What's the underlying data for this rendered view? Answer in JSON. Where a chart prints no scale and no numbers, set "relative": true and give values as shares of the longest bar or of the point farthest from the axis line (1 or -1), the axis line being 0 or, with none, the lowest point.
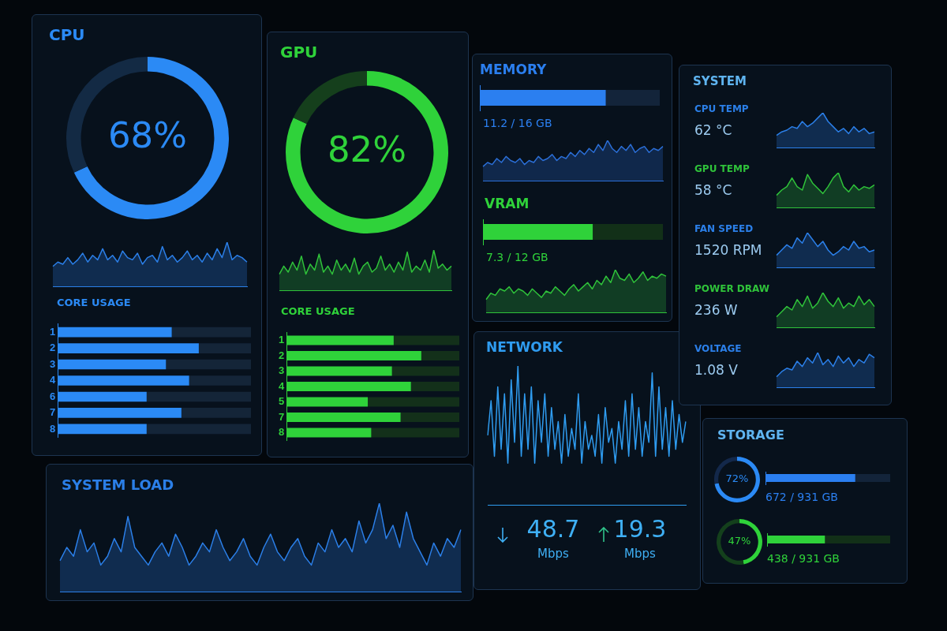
{
  "chart_data": [
    {
      "type": "donut",
      "title": "CPU",
      "categories": [
        null,
        null
      ],
      "values": [
        68,
        32
      ],
      "colors": [
        "#2b8af5",
        "#132a44"
      ],
      "value_labels": [
        "68%",
        null
      ]
    },
    {
      "type": "area",
      "relative": true,
      "color": "#2b7fe8",
      "categories": [
        null,
        null,
        null,
        null,
        null,
        null,
        null,
        null,
        null,
        null,
        null,
        null,
        null,
        null,
        null,
        null,
        null,
        null,
        null,
        null,
        null,
        null,
        null,
        null,
        null,
        null,
        null,
        null,
        null,
        null,
        null,
        null,
        null,
        null,
        null,
        null,
        null,
        null,
        null,
        null
      ],
      "values": [
        0.45,
        0.55,
        0.5,
        0.65,
        0.5,
        0.6,
        0.75,
        0.55,
        0.7,
        0.6,
        0.85,
        0.6,
        0.7,
        0.55,
        0.8,
        0.65,
        0.6,
        0.75,
        0.5,
        0.65,
        0.7,
        0.55,
        0.9,
        0.6,
        0.7,
        0.55,
        0.65,
        0.8,
        0.6,
        0.7,
        0.55,
        0.75,
        0.6,
        0.85,
        0.65,
        1,
        0.6,
        0.7,
        0.65,
        0.55
      ]
    },
    {
      "type": "bar",
      "title": "CORE USAGE",
      "orientation": "horizontal",
      "stacked": true,
      "relative": true,
      "categories": [
        "1",
        "2",
        "3",
        "4",
        "6",
        "7",
        "8"
      ],
      "series": [
        {
          "color": "#2b8af5",
          "values": [
            0.59,
            0.73,
            0.56,
            0.68,
            0.46,
            0.64,
            0.46
          ]
        },
        {
          "color": "#142538",
          "values": [
            0.41,
            0.27,
            0.44,
            0.32,
            0.54,
            0.36,
            0.54
          ]
        }
      ]
    },
    {
      "type": "donut",
      "title": "GPU",
      "categories": [
        null,
        null
      ],
      "values": [
        82,
        18
      ],
      "colors": [
        "#2fd23a",
        "#153f1c"
      ],
      "value_labels": [
        "82%",
        null
      ]
    },
    {
      "type": "area",
      "relative": true,
      "color": "#2fc23a",
      "categories": [
        null,
        null,
        null,
        null,
        null,
        null,
        null,
        null,
        null,
        null,
        null,
        null,
        null,
        null,
        null,
        null,
        null,
        null,
        null,
        null,
        null,
        null,
        null,
        null,
        null,
        null,
        null,
        null,
        null,
        null,
        null,
        null,
        null,
        null,
        null,
        null,
        null,
        null,
        null,
        null
      ],
      "values": [
        0.4,
        0.6,
        0.45,
        0.7,
        0.5,
        0.85,
        0.4,
        0.65,
        0.5,
        0.9,
        0.45,
        0.6,
        0.4,
        0.75,
        0.5,
        0.65,
        0.45,
        0.8,
        0.4,
        0.6,
        0.7,
        0.45,
        0.55,
        0.85,
        0.5,
        0.65,
        0.45,
        0.7,
        0.5,
        0.95,
        0.45,
        0.6,
        0.5,
        0.75,
        0.45,
        1,
        0.55,
        0.65,
        0.5,
        0.6
      ]
    },
    {
      "type": "bar",
      "title": "CORE USAGE",
      "orientation": "horizontal",
      "stacked": true,
      "relative": true,
      "categories": [
        "1",
        "2",
        "3",
        "4",
        "5",
        "7",
        "8"
      ],
      "series": [
        {
          "color": "#2fd23a",
          "values": [
            0.62,
            0.78,
            0.61,
            0.72,
            0.47,
            0.66,
            0.49
          ]
        },
        {
          "color": "#13301a",
          "values": [
            0.38,
            0.22,
            0.39,
            0.28,
            0.53,
            0.34,
            0.51
          ]
        }
      ]
    },
    {
      "type": "bar",
      "title": "MEMORY",
      "orientation": "horizontal",
      "stacked": true,
      "relative": true,
      "categories": [
        null
      ],
      "series": [
        {
          "color": "#2b7ff0",
          "values": [
            0.7
          ]
        },
        {
          "color": "#13243a",
          "values": [
            0.3
          ]
        }
      ],
      "annotations": [
        "11.2 / 16 GB"
      ]
    },
    {
      "type": "area",
      "relative": true,
      "color": "#2b6fd8",
      "categories": [
        null,
        null,
        null,
        null,
        null,
        null,
        null,
        null,
        null,
        null,
        null,
        null,
        null,
        null,
        null,
        null,
        null,
        null,
        null,
        null,
        null,
        null,
        null,
        null,
        null,
        null,
        null,
        null,
        null,
        null,
        null,
        null,
        null,
        null,
        null,
        null,
        null,
        null,
        null,
        null
      ],
      "values": [
        0.35,
        0.45,
        0.4,
        0.55,
        0.45,
        0.6,
        0.5,
        0.45,
        0.55,
        0.4,
        0.5,
        0.45,
        0.6,
        0.5,
        0.55,
        0.65,
        0.5,
        0.6,
        0.55,
        0.7,
        0.6,
        0.75,
        0.65,
        0.8,
        0.7,
        0.9,
        0.75,
        1,
        0.8,
        0.7,
        0.85,
        0.75,
        0.9,
        0.7,
        0.8,
        0.85,
        0.7,
        0.8,
        0.75,
        0.85
      ]
    },
    {
      "type": "bar",
      "title": "VRAM",
      "orientation": "horizontal",
      "stacked": true,
      "relative": true,
      "categories": [
        null
      ],
      "series": [
        {
          "color": "#2fd23a",
          "values": [
            0.61
          ]
        },
        {
          "color": "#123018",
          "values": [
            0.39
          ]
        }
      ],
      "annotations": [
        "7.3 / 12 GB"
      ]
    },
    {
      "type": "area",
      "relative": true,
      "color": "#2fc23a",
      "categories": [
        null,
        null,
        null,
        null,
        null,
        null,
        null,
        null,
        null,
        null,
        null,
        null,
        null,
        null,
        null,
        null,
        null,
        null,
        null,
        null,
        null,
        null,
        null,
        null,
        null,
        null,
        null,
        null,
        null,
        null,
        null,
        null,
        null,
        null,
        null,
        null,
        null,
        null,
        null,
        null
      ],
      "values": [
        0.3,
        0.45,
        0.4,
        0.55,
        0.5,
        0.6,
        0.45,
        0.55,
        0.5,
        0.4,
        0.55,
        0.45,
        0.35,
        0.5,
        0.45,
        0.6,
        0.5,
        0.4,
        0.55,
        0.65,
        0.5,
        0.6,
        0.7,
        0.55,
        0.75,
        0.65,
        0.85,
        0.7,
        1,
        0.8,
        0.75,
        0.9,
        0.7,
        0.8,
        0.95,
        0.75,
        0.85,
        0.8,
        0.9,
        0.85
      ]
    },
    {
      "type": "line",
      "title": "NETWORK",
      "relative": true,
      "color": "#2f9cf0",
      "categories": [
        null,
        null,
        null,
        null,
        null,
        null,
        null,
        null,
        null,
        null,
        null,
        null,
        null,
        null,
        null,
        null,
        null,
        null,
        null,
        null,
        null,
        null,
        null,
        null,
        null,
        null,
        null,
        null,
        null,
        null,
        null,
        null,
        null,
        null,
        null,
        null,
        null,
        null,
        null,
        null,
        null,
        null,
        null,
        null,
        null,
        null,
        null,
        null,
        null,
        null,
        null,
        null,
        null,
        null,
        null,
        null,
        null,
        null,
        null,
        null
      ],
      "values": [
        0.5,
        0.75,
        0.35,
        0.85,
        0.4,
        0.8,
        0.3,
        0.9,
        0.45,
        1,
        0.35,
        0.8,
        0.4,
        0.85,
        0.3,
        0.75,
        0.45,
        0.8,
        0.35,
        0.7,
        0.4,
        0.6,
        0.3,
        0.65,
        0.35,
        0.55,
        0.4,
        0.8,
        0.3,
        0.6,
        0.4,
        0.5,
        0.35,
        0.65,
        0.3,
        0.7,
        0.45,
        0.55,
        0.3,
        0.6,
        0.4,
        0.75,
        0.35,
        0.8,
        0.4,
        0.7,
        0.35,
        0.6,
        0.45,
        0.95,
        0.35,
        0.85,
        0.4,
        0.7,
        0.35,
        0.75,
        0.4,
        0.65,
        0.45,
        0.6
      ],
      "annotations": [
        "48.7",
        "Mbps",
        "19.3",
        "Mbps"
      ]
    },
    {
      "type": "other",
      "title": "SYSTEM"
    },
    {
      "type": "area",
      "title": "CPU TEMP",
      "subtitle": "62 °C",
      "relative": true,
      "color": "#2b7fe8",
      "categories": [
        null,
        null,
        null,
        null,
        null,
        null,
        null,
        null,
        null,
        null,
        null,
        null,
        null,
        null,
        null,
        null,
        null,
        null,
        null,
        null
      ],
      "values": [
        0.35,
        0.45,
        0.5,
        0.6,
        0.55,
        0.75,
        0.6,
        0.7,
        0.85,
        1,
        0.75,
        0.6,
        0.45,
        0.55,
        0.4,
        0.6,
        0.45,
        0.55,
        0.4,
        0.45
      ]
    },
    {
      "type": "area",
      "title": "GPU TEMP",
      "subtitle": "58 °C",
      "relative": true,
      "color": "#2fc23a",
      "categories": [
        null,
        null,
        null,
        null,
        null,
        null,
        null,
        null,
        null,
        null,
        null,
        null,
        null,
        null,
        null,
        null,
        null,
        null,
        null,
        null
      ],
      "values": [
        0.35,
        0.5,
        0.6,
        0.85,
        0.6,
        0.5,
        0.95,
        0.7,
        0.55,
        0.4,
        0.6,
        0.85,
        1,
        0.6,
        0.45,
        0.65,
        0.5,
        0.6,
        0.55,
        0.65
      ]
    },
    {
      "type": "area",
      "title": "FAN SPEED",
      "subtitle": "1520 RPM",
      "relative": true,
      "color": "#2b7fe8",
      "categories": [
        null,
        null,
        null,
        null,
        null,
        null,
        null,
        null,
        null,
        null,
        null,
        null,
        null,
        null,
        null,
        null,
        null,
        null,
        null,
        null
      ],
      "values": [
        0.35,
        0.5,
        0.65,
        0.55,
        0.85,
        0.7,
        1,
        0.8,
        0.6,
        0.75,
        0.5,
        0.35,
        0.45,
        0.6,
        0.5,
        0.75,
        0.55,
        0.6,
        0.45,
        0.5
      ]
    },
    {
      "type": "area",
      "title": "POWER DRAW",
      "subtitle": "236 W",
      "relative": true,
      "color": "#2fc23a",
      "categories": [
        null,
        null,
        null,
        null,
        null,
        null,
        null,
        null,
        null,
        null,
        null,
        null,
        null,
        null,
        null,
        null,
        null,
        null,
        null,
        null
      ],
      "values": [
        0.3,
        0.45,
        0.6,
        0.5,
        0.8,
        0.6,
        0.9,
        0.55,
        0.7,
        1,
        0.75,
        0.6,
        0.85,
        0.55,
        0.7,
        0.6,
        0.9,
        0.65,
        0.8,
        0.6
      ]
    },
    {
      "type": "area",
      "title": "VOLTAGE",
      "subtitle": "1.08 V",
      "relative": true,
      "color": "#2b7fe8",
      "categories": [
        null,
        null,
        null,
        null,
        null,
        null,
        null,
        null,
        null,
        null,
        null,
        null,
        null,
        null,
        null,
        null,
        null,
        null,
        null,
        null
      ],
      "values": [
        0.3,
        0.45,
        0.55,
        0.5,
        0.75,
        0.6,
        0.85,
        0.7,
        1,
        0.65,
        0.8,
        0.6,
        0.9,
        0.7,
        0.85,
        0.6,
        0.8,
        0.7,
        0.95,
        0.85
      ]
    },
    {
      "type": "other",
      "title": "STORAGE"
    },
    {
      "type": "donut",
      "categories": [
        null,
        null
      ],
      "values": [
        72,
        28
      ],
      "colors": [
        "#2b8af5",
        "#13284a"
      ],
      "value_labels": [
        "72%",
        null
      ]
    },
    {
      "type": "bar",
      "orientation": "horizontal",
      "stacked": true,
      "relative": true,
      "categories": [
        null
      ],
      "series": [
        {
          "color": "#2b7ff0",
          "values": [
            0.72
          ]
        },
        {
          "color": "#13243a",
          "values": [
            0.28
          ]
        }
      ],
      "annotations": [
        "672 / 931 GB"
      ]
    },
    {
      "type": "donut",
      "categories": [
        null,
        null
      ],
      "values": [
        47,
        53
      ],
      "colors": [
        "#2fd23a",
        "#14401c"
      ],
      "value_labels": [
        "47%",
        null
      ]
    },
    {
      "type": "bar",
      "orientation": "horizontal",
      "stacked": true,
      "relative": true,
      "categories": [
        null
      ],
      "series": [
        {
          "color": "#2fd23a",
          "values": [
            0.47
          ]
        },
        {
          "color": "#123018",
          "values": [
            0.53
          ]
        }
      ],
      "annotations": [
        "438 / 931 GB"
      ]
    },
    {
      "type": "area",
      "title": "SYSTEM LOAD",
      "relative": true,
      "color": "#2b7fe8",
      "categories": [
        null,
        null,
        null,
        null,
        null,
        null,
        null,
        null,
        null,
        null,
        null,
        null,
        null,
        null,
        null,
        null,
        null,
        null,
        null,
        null,
        null,
        null,
        null,
        null,
        null,
        null,
        null,
        null,
        null,
        null,
        null,
        null,
        null,
        null,
        null,
        null,
        null,
        null,
        null,
        null,
        null,
        null,
        null,
        null,
        null,
        null,
        null,
        null,
        null,
        null,
        null,
        null,
        null,
        null,
        null,
        null,
        null,
        null,
        null,
        null
      ],
      "values": [
        0.35,
        0.5,
        0.4,
        0.7,
        0.45,
        0.55,
        0.3,
        0.4,
        0.6,
        0.45,
        0.85,
        0.5,
        0.4,
        0.3,
        0.45,
        0.55,
        0.4,
        0.65,
        0.5,
        0.3,
        0.4,
        0.55,
        0.45,
        0.7,
        0.5,
        0.35,
        0.45,
        0.6,
        0.4,
        0.3,
        0.5,
        0.65,
        0.45,
        0.35,
        0.5,
        0.6,
        0.4,
        0.3,
        0.55,
        0.45,
        0.7,
        0.5,
        0.6,
        0.45,
        0.8,
        0.55,
        0.7,
        1,
        0.6,
        0.75,
        0.5,
        0.9,
        0.6,
        0.45,
        0.3,
        0.55,
        0.4,
        0.6,
        0.5,
        0.7
      ]
    }
  ]
}
